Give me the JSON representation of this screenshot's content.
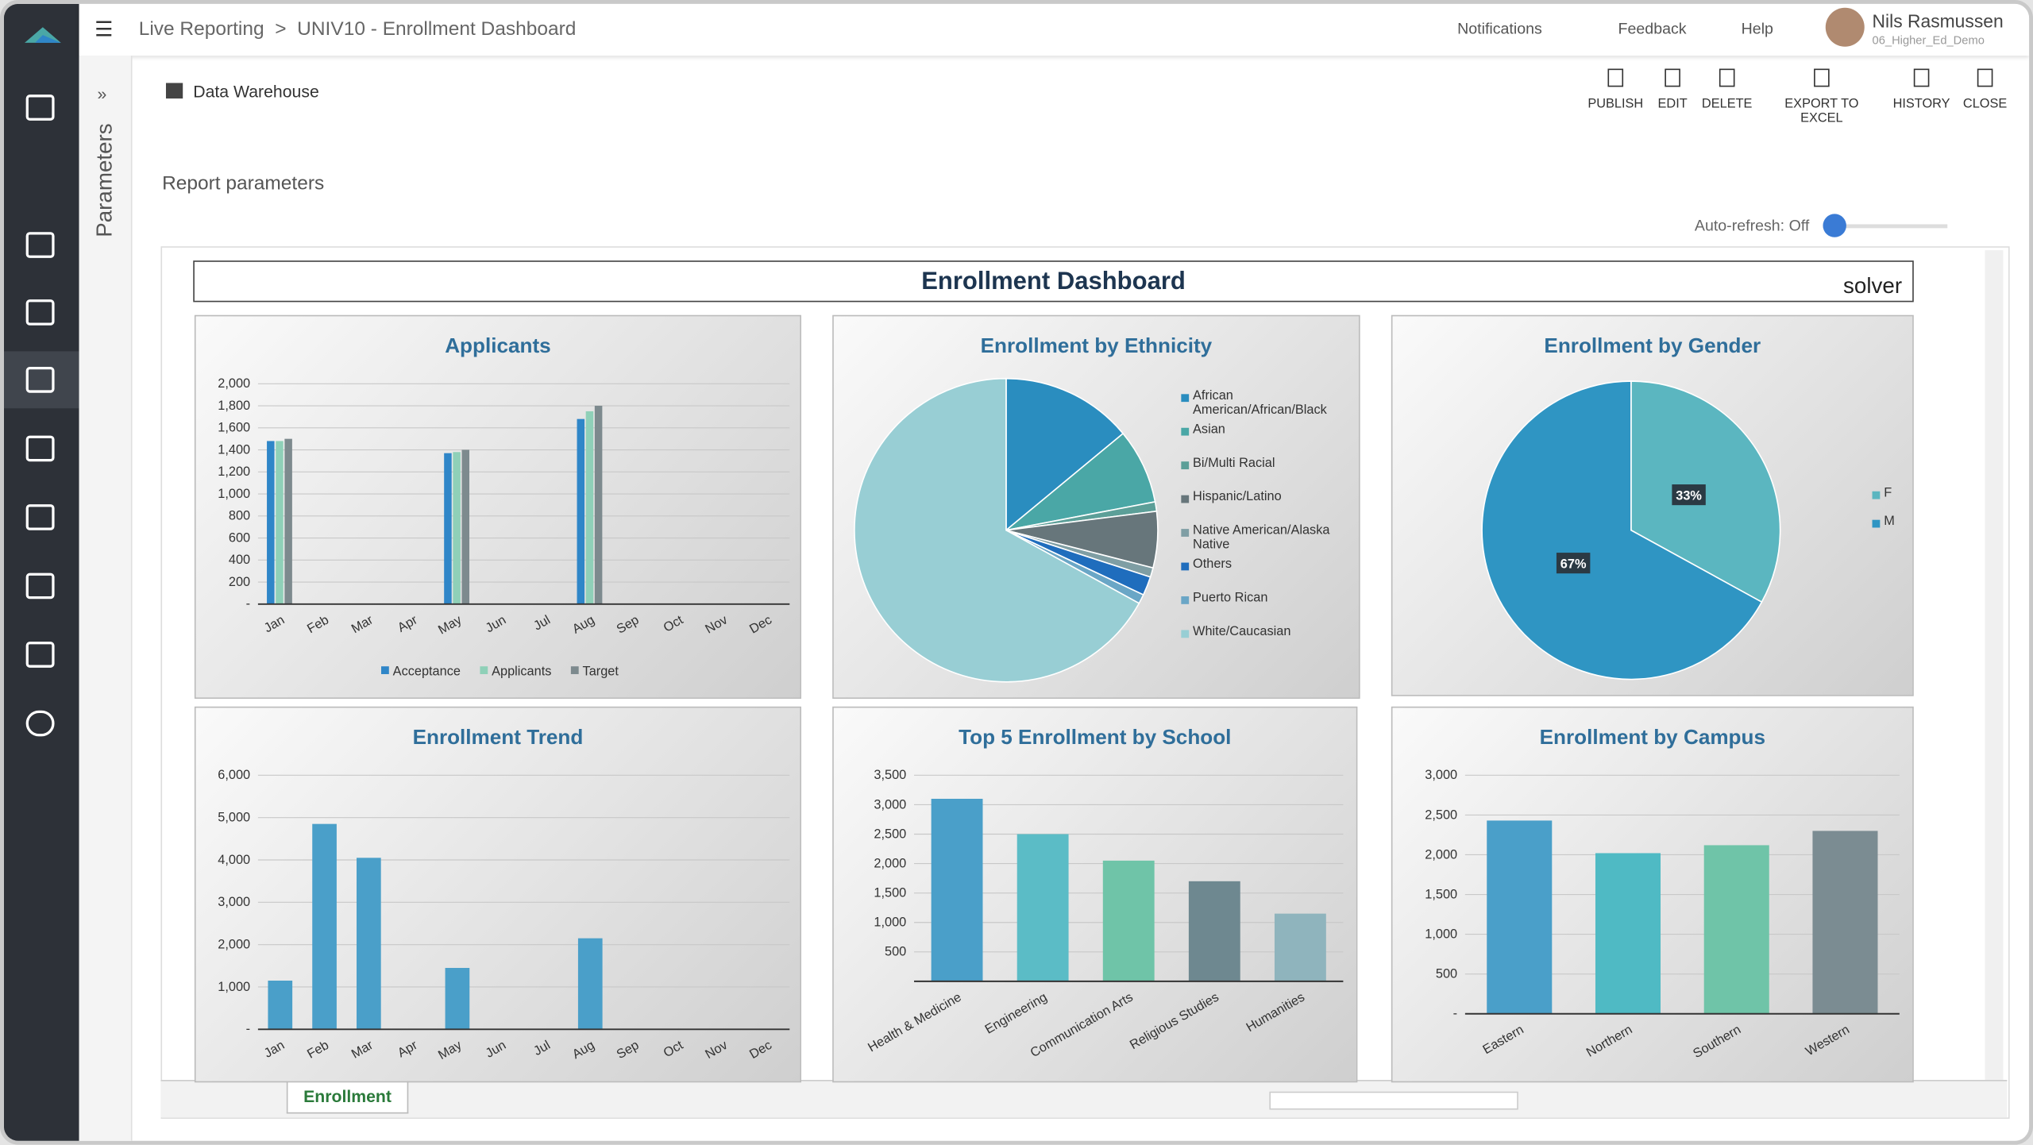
{
  "header": {
    "breadcrumb": [
      "Live Reporting",
      ">",
      "UNIV10 - Enrollment Dashboard"
    ],
    "notifications": "Notifications",
    "feedback": "Feedback",
    "help": "Help",
    "user": "Nils Rasmussen",
    "user_role": "06_Higher_Ed_Demo"
  },
  "panel": {
    "parameters": "Parameters",
    "source": "Data Warehouse",
    "report_parameters": "Report parameters",
    "auto_refresh": "Auto-refresh: Off"
  },
  "toolbar": [
    "PUBLISH",
    "EDIT",
    "DELETE",
    "EXPORT TO EXCEL",
    "HISTORY",
    "CLOSE"
  ],
  "dashboard": {
    "title": "Enrollment Dashboard",
    "logo": "solver",
    "sheet_tab": "Enrollment"
  },
  "chart_data": [
    {
      "type": "bar",
      "title": "Applicants",
      "categories": [
        "Jan",
        "Feb",
        "Mar",
        "Apr",
        "May",
        "Jun",
        "Jul",
        "Aug",
        "Sep",
        "Oct",
        "Nov",
        "Dec"
      ],
      "series": [
        {
          "name": "Acceptance",
          "color": "#2f86c8",
          "values": [
            1480,
            null,
            null,
            null,
            1370,
            null,
            null,
            1680,
            null,
            null,
            null,
            null
          ]
        },
        {
          "name": "Applicants",
          "color": "#8fd0b8",
          "values": [
            1480,
            null,
            null,
            null,
            1380,
            null,
            null,
            1750,
            null,
            null,
            null,
            null
          ]
        },
        {
          "name": "Target",
          "color": "#7d8a8e",
          "values": [
            1500,
            null,
            null,
            null,
            1400,
            null,
            null,
            1800,
            null,
            null,
            null,
            null
          ]
        }
      ],
      "ylim": [
        0,
        2000
      ],
      "yticks": [
        {
          "value": 0,
          "label": "-"
        },
        200,
        400,
        600,
        800,
        {
          "value": 1000,
          "label": "1,000"
        },
        {
          "value": 1200,
          "label": "1,200"
        },
        {
          "value": 1400,
          "label": "1,400"
        },
        {
          "value": 1600,
          "label": "1,600"
        },
        {
          "value": 1800,
          "label": "1,800"
        },
        {
          "value": 2000,
          "label": "2,000"
        }
      ],
      "grid": true,
      "legend": "bottom"
    },
    {
      "type": "pie",
      "title": "Enrollment by Ethnicity",
      "categories": [
        "African American/African/Black",
        "Asian",
        "Bi/Multi Racial",
        "Hispanic/Latino",
        "Native American/Alaska Native",
        "Others",
        "Puerto Rican",
        "White/Caucasian"
      ],
      "values": [
        14,
        8,
        1,
        6,
        1,
        2,
        1,
        67
      ],
      "colors": [
        "#2a8dbf",
        "#4aa7a6",
        "#5c9f98",
        "#67767b",
        "#7f9ea4",
        "#1f6dbd",
        "#6aa6c6",
        "#98ced4"
      ],
      "legend": "right"
    },
    {
      "type": "pie",
      "title": "Enrollment by Gender",
      "categories": [
        "F",
        "M"
      ],
      "values": [
        33,
        67
      ],
      "value_labels": [
        "33%",
        "67%"
      ],
      "colors": [
        "#5bb6c0",
        "#2f95c3"
      ],
      "legend": "right"
    },
    {
      "type": "bar",
      "title": "Enrollment Trend",
      "categories": [
        "Jan",
        "Feb",
        "Mar",
        "Apr",
        "May",
        "Jun",
        "Jul",
        "Aug",
        "Sep",
        "Oct",
        "Nov",
        "Dec"
      ],
      "series": [
        {
          "color": "#4a9fc9",
          "values": [
            1150,
            4850,
            4050,
            null,
            1450,
            null,
            null,
            2150,
            null,
            null,
            null,
            null
          ]
        }
      ],
      "ylim": [
        0,
        6000
      ],
      "yticks": [
        {
          "value": 0,
          "label": "-"
        },
        {
          "value": 1000,
          "label": "1,000"
        },
        {
          "value": 2000,
          "label": "2,000"
        },
        {
          "value": 3000,
          "label": "3,000"
        },
        {
          "value": 4000,
          "label": "4,000"
        },
        {
          "value": 5000,
          "label": "5,000"
        },
        {
          "value": 6000,
          "label": "6,000"
        }
      ],
      "grid": true
    },
    {
      "type": "bar",
      "title": "Top 5 Enrollment by School",
      "categories": [
        "Health & Medicine",
        "Engineering",
        "Communication Arts",
        "Religious Studies",
        "Humanities"
      ],
      "series": [
        {
          "colors": [
            "#4a9fc9",
            "#5bbcc6",
            "#6fc4a8",
            "#6e8890",
            "#8fb4bd"
          ],
          "values": [
            3100,
            2500,
            2050,
            1700,
            1150
          ]
        }
      ],
      "ylim": [
        0,
        3500
      ],
      "yticks": [
        500,
        {
          "value": 1000,
          "label": "1,000"
        },
        {
          "value": 1500,
          "label": "1,500"
        },
        {
          "value": 2000,
          "label": "2,000"
        },
        {
          "value": 2500,
          "label": "2,500"
        },
        {
          "value": 3000,
          "label": "3,000"
        },
        {
          "value": 3500,
          "label": "3,500"
        }
      ],
      "grid": true
    },
    {
      "type": "bar",
      "title": "Enrollment by Campus",
      "categories": [
        "Eastern",
        "Northern",
        "Southern",
        "Western"
      ],
      "series": [
        {
          "colors": [
            "#4a9fc9",
            "#4fbac4",
            "#6fc4a8",
            "#7b8c92"
          ],
          "values": [
            2430,
            2020,
            2120,
            2300
          ]
        }
      ],
      "ylim": [
        0,
        3000
      ],
      "yticks": [
        {
          "value": 0,
          "label": "-"
        },
        500,
        {
          "value": 1000,
          "label": "1,000"
        },
        {
          "value": 1500,
          "label": "1,500"
        },
        {
          "value": 2000,
          "label": "2,000"
        },
        {
          "value": 2500,
          "label": "2,500"
        },
        {
          "value": 3000,
          "label": "3,000"
        }
      ],
      "grid": true
    }
  ]
}
